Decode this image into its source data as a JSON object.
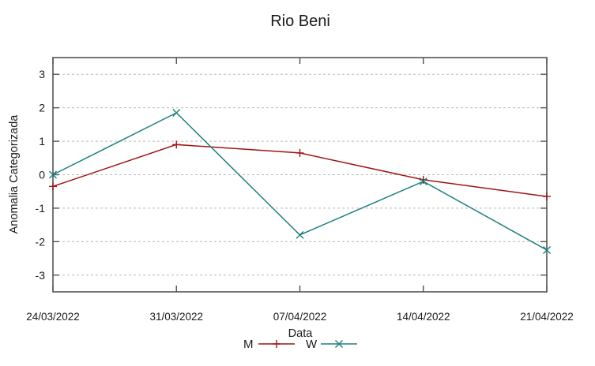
{
  "chart_data": {
    "type": "line",
    "title": "Rio Beni",
    "xlabel": "Data",
    "ylabel": "Anomalia Categorizada",
    "categories": [
      "24/03/2022",
      "31/03/2022",
      "07/04/2022",
      "14/04/2022",
      "21/04/2022"
    ],
    "series": [
      {
        "name": "M",
        "marker": "plus",
        "color": "#a01414",
        "values": [
          -0.35,
          0.9,
          0.65,
          -0.15,
          -0.65
        ]
      },
      {
        "name": "W",
        "marker": "cross",
        "color": "#1f8080",
        "values": [
          0.0,
          1.85,
          -1.8,
          -0.2,
          -2.25
        ]
      }
    ],
    "ylim": [
      -3.5,
      3.5
    ],
    "yticks": [
      -3,
      -2,
      -1,
      0,
      1,
      2,
      3
    ],
    "grid": "horizontal-dashed",
    "legend_position": "bottom-center",
    "colors": {
      "grid": "#b8b8b8",
      "border": "#545454",
      "text": "#1a1a1a"
    }
  }
}
